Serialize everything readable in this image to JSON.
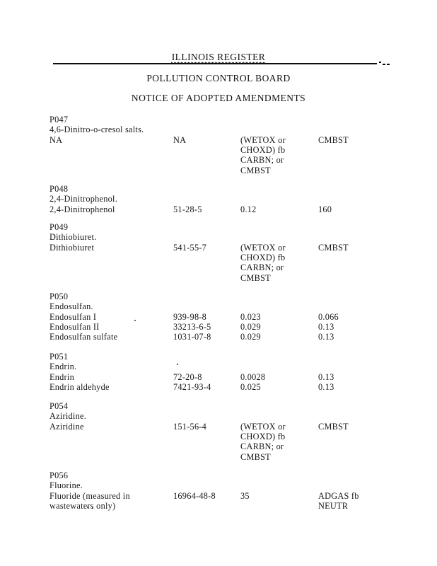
{
  "header": {
    "register_title": "ILLINOIS REGISTER",
    "board_title": "POLLUTION CONTROL BOARD",
    "notice_title": "NOTICE OF ADOPTED AMENDMENTS"
  },
  "listing": {
    "sections": [
      {
        "code": "P047",
        "chemical": "4,6-Dinitro-o-cresol salts.",
        "rows": [
          {
            "constituent": "NA",
            "cas": "NA",
            "standard_a": "(WETOX or\nCHOXD) fb\nCARBN; or\nCMBST",
            "standard_b": "CMBST"
          }
        ]
      },
      {
        "code": "P048",
        "chemical": "2,4-Dinitrophenol.",
        "rows": [
          {
            "constituent": "2,4-Dinitrophenol",
            "cas": "51-28-5",
            "standard_a": "0.12",
            "standard_b": "160"
          }
        ]
      },
      {
        "code": "P049",
        "chemical": "Dithiobiuret.",
        "rows": [
          {
            "constituent": "Dithiobiuret",
            "cas": "541-55-7",
            "standard_a": "(WETOX or\nCHOXD) fb\nCARBN; or\nCMBST",
            "standard_b": "CMBST"
          }
        ]
      },
      {
        "code": "P050",
        "chemical": "Endosulfan.",
        "rows": [
          {
            "constituent": "Endosulfan I",
            "cas": "939-98-8",
            "standard_a": "0.023",
            "standard_b": "0.066"
          },
          {
            "constituent": "Endosulfan II",
            "cas": "33213-6-5",
            "standard_a": "0.029",
            "standard_b": "0.13"
          },
          {
            "constituent": "Endosulfan sulfate",
            "cas": "1031-07-8",
            "standard_a": "0.029",
            "standard_b": "0.13"
          }
        ]
      },
      {
        "code": "P051",
        "chemical": "Endrin.",
        "rows": [
          {
            "constituent": "Endrin",
            "cas": "72-20-8",
            "standard_a": "0.0028",
            "standard_b": "0.13"
          },
          {
            "constituent": "Endrin aldehyde",
            "cas": "7421-93-4",
            "standard_a": "0.025",
            "standard_b": "0.13"
          }
        ]
      },
      {
        "code": "P054",
        "chemical": "Aziridine.",
        "rows": [
          {
            "constituent": "Aziridine",
            "cas": "151-56-4",
            "standard_a": "(WETOX or\nCHOXD) fb\nCARBN; or\nCMBST",
            "standard_b": "CMBST"
          }
        ]
      },
      {
        "code": "P056",
        "chemical": "Fluorine.",
        "rows": [
          {
            "constituent": "Fluoride (measured in\nwastewaters only)",
            "cas": "16964-48-8",
            "standard_a": "35",
            "standard_b": "ADGAS fb\nNEUTR"
          }
        ]
      }
    ]
  }
}
